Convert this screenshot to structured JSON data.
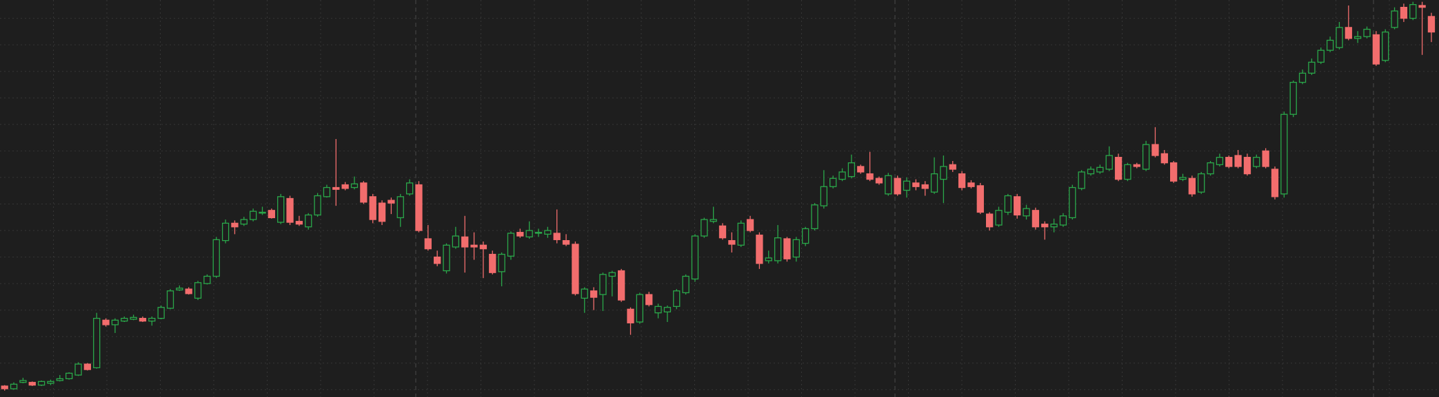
{
  "chart_data": {
    "type": "candlestick",
    "ylim": [
      0,
      434
    ],
    "yticks": [
      8,
      37,
      66,
      95,
      124,
      153,
      182,
      211,
      240,
      269,
      298,
      327,
      356,
      385,
      414
    ],
    "grid": true,
    "up_color": "#2aa84a",
    "down_color": "#f26d6d",
    "categories": [
      null,
      null,
      null,
      null,
      null,
      null,
      null,
      null,
      null,
      null,
      null,
      null,
      null,
      null,
      null,
      null,
      null,
      null,
      null,
      null,
      null,
      null,
      null,
      null,
      null,
      null,
      null,
      null,
      null,
      null,
      null,
      null,
      null,
      null,
      null,
      null,
      null,
      null,
      null,
      null,
      null,
      null,
      null,
      null,
      null,
      null,
      null,
      null,
      null,
      null,
      null,
      null,
      null,
      null,
      null,
      null,
      null,
      null,
      null,
      null,
      null,
      null,
      null,
      null,
      null,
      null,
      null,
      null,
      null,
      null,
      null,
      null,
      null,
      null,
      null,
      null,
      null,
      null,
      null,
      null,
      null,
      null,
      null,
      null,
      null,
      null,
      null,
      null,
      null,
      null,
      null,
      null,
      null,
      null,
      null,
      null,
      null,
      null,
      null,
      null,
      null,
      null,
      null,
      null,
      null,
      null,
      null,
      null,
      null,
      null,
      null,
      null,
      null,
      null,
      null,
      null,
      null,
      null,
      null,
      null,
      null,
      null,
      null,
      null,
      null,
      null,
      null,
      null,
      null,
      null,
      null,
      null,
      null,
      null,
      null,
      null,
      null,
      null,
      null,
      null,
      null,
      null,
      null,
      null,
      null,
      null,
      null,
      null,
      null,
      null,
      null,
      null,
      null,
      null,
      null,
      null
    ],
    "open": [
      12,
      9,
      16,
      16,
      13,
      15,
      18,
      20,
      24,
      36,
      32,
      84,
      79,
      83,
      85,
      86,
      83,
      86,
      97,
      117,
      118,
      108,
      124,
      132,
      171,
      190,
      189,
      194,
      201,
      204,
      191,
      217,
      192,
      186,
      199,
      219,
      229,
      232,
      229,
      234,
      219,
      212,
      215,
      196,
      222,
      232,
      173,
      153,
      138,
      164,
      175,
      166,
      166,
      156,
      137,
      154,
      180,
      175,
      179,
      178,
      179,
      171,
      167,
      108,
      116,
      112,
      132,
      138,
      96,
      82,
      112,
      92,
      93,
      99,
      114,
      129,
      176,
      192,
      187,
      171,
      166,
      194,
      177,
      149,
      149,
      173,
      153,
      168,
      184,
      209,
      230,
      238,
      241,
      252,
      244,
      239,
      222,
      239,
      226,
      234,
      232,
      224,
      238,
      254,
      244,
      234,
      231,
      200,
      188,
      202,
      219,
      198,
      204,
      189,
      186,
      188,
      196,
      228,
      244,
      246,
      249,
      262,
      238,
      254,
      249,
      276,
      266,
      256,
      238,
      239,
      224,
      244,
      254,
      262,
      264,
      262,
      252,
      269,
      249,
      222,
      309,
      344,
      354,
      366,
      379,
      382,
      404,
      392,
      394,
      396,
      368,
      404,
      426,
      414,
      428,
      416
    ],
    "high": [
      13,
      16,
      21,
      17,
      18,
      19,
      24,
      27,
      38,
      37,
      92,
      86,
      86,
      88,
      90,
      88,
      88,
      100,
      118,
      122,
      120,
      127,
      134,
      175,
      194,
      193,
      197,
      206,
      208,
      206,
      222,
      220,
      198,
      201,
      223,
      232,
      282,
      235,
      241,
      236,
      222,
      215,
      218,
      222,
      238,
      236,
      188,
      160,
      168,
      186,
      198,
      180,
      170,
      160,
      158,
      181,
      184,
      192,
      184,
      186,
      205,
      178,
      170,
      120,
      120,
      136,
      138,
      140,
      98,
      114,
      115,
      102,
      100,
      118,
      134,
      178,
      196,
      208,
      190,
      180,
      193,
      198,
      180,
      160,
      188,
      175,
      175,
      186,
      212,
      248,
      242,
      250,
      265,
      254,
      268,
      241,
      245,
      242,
      240,
      238,
      236,
      262,
      264,
      258,
      247,
      237,
      234,
      202,
      208,
      222,
      222,
      210,
      207,
      192,
      195,
      201,
      232,
      248,
      252,
      254,
      274,
      266,
      256,
      256,
      280,
      295,
      270,
      258,
      244,
      242,
      246,
      258,
      266,
      264,
      270,
      266,
      265,
      272,
      252,
      312,
      346,
      358,
      370,
      382,
      394,
      410,
      428,
      400,
      405,
      400,
      402,
      426,
      430,
      432,
      432,
      420
    ],
    "low": [
      7,
      8,
      15,
      12,
      12,
      13,
      17,
      19,
      23,
      29,
      31,
      77,
      70,
      82,
      84,
      82,
      78,
      85,
      96,
      116,
      112,
      106,
      123,
      130,
      168,
      178,
      187,
      192,
      199,
      195,
      189,
      188,
      187,
      183,
      197,
      218,
      209,
      226,
      227,
      211,
      190,
      188,
      200,
      186,
      220,
      180,
      160,
      143,
      135,
      162,
      136,
      150,
      130,
      134,
      121,
      150,
      174,
      173,
      175,
      174,
      168,
      165,
      111,
      92,
      95,
      94,
      110,
      104,
      68,
      80,
      99,
      86,
      82,
      96,
      112,
      126,
      174,
      190,
      172,
      158,
      164,
      180,
      140,
      146,
      146,
      148,
      148,
      165,
      182,
      206,
      228,
      236,
      239,
      244,
      236,
      232,
      220,
      220,
      218,
      226,
      220,
      222,
      212,
      246,
      226,
      228,
      200,
      182,
      186,
      199,
      195,
      194,
      183,
      172,
      180,
      186,
      194,
      226,
      242,
      244,
      247,
      236,
      236,
      250,
      247,
      262,
      254,
      234,
      236,
      219,
      222,
      242,
      252,
      250,
      250,
      242,
      250,
      250,
      216,
      218,
      306,
      342,
      352,
      364,
      377,
      380,
      390,
      387,
      392,
      362,
      366,
      402,
      410,
      412,
      374,
      388
    ],
    "close": [
      9,
      14,
      18,
      13,
      17,
      17,
      20,
      26,
      36,
      30,
      86,
      79,
      84,
      86,
      87,
      83,
      86,
      98,
      116,
      119,
      113,
      125,
      132,
      172,
      190,
      186,
      194,
      203,
      202,
      196,
      219,
      191,
      189,
      199,
      220,
      229,
      227,
      228,
      233,
      213,
      194,
      192,
      212,
      219,
      234,
      182,
      162,
      146,
      166,
      176,
      164,
      164,
      162,
      136,
      156,
      179,
      176,
      182,
      180,
      182,
      172,
      167,
      113,
      118,
      109,
      134,
      136,
      106,
      81,
      112,
      101,
      99,
      98,
      116,
      132,
      176,
      194,
      194,
      174,
      167,
      190,
      182,
      146,
      152,
      174,
      151,
      172,
      184,
      210,
      230,
      239,
      246,
      256,
      246,
      238,
      234,
      242,
      222,
      236,
      230,
      228,
      244,
      252,
      249,
      229,
      230,
      202,
      186,
      204,
      220,
      199,
      206,
      186,
      186,
      189,
      198,
      229,
      246,
      249,
      251,
      264,
      238,
      254,
      252,
      276,
      264,
      256,
      236,
      240,
      222,
      244,
      256,
      262,
      252,
      252,
      244,
      262,
      252,
      219,
      309,
      344,
      354,
      366,
      379,
      390,
      404,
      392,
      394,
      402,
      364,
      399,
      422,
      414,
      429,
      426,
      399
    ]
  }
}
